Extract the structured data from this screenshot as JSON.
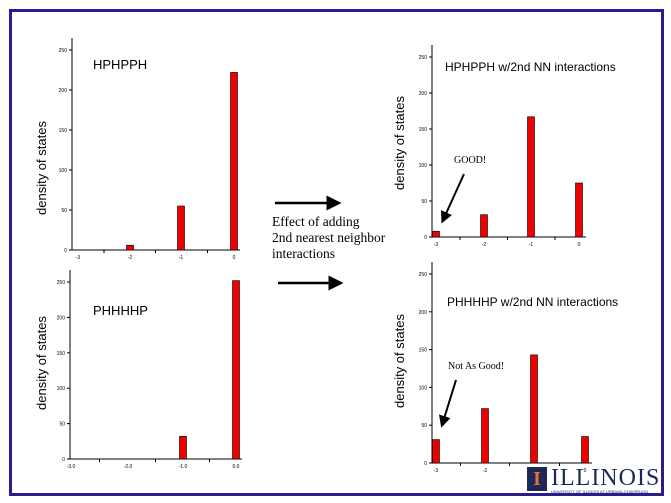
{
  "charts_meta": {
    "ylabel": "density of states"
  },
  "middle": {
    "line1": "Effect of adding",
    "line2": "2nd nearest neighbor",
    "line3": "interactions"
  },
  "notes": {
    "good": "GOOD!",
    "not_good": "Not As Good!"
  },
  "logo": {
    "text": "ILLINOIS",
    "letter": "I",
    "subtitle": "UNIVERSITY OF ILLINOIS AT URBANA-CHAMPAIGN"
  },
  "colors": {
    "bar": "#ee0000",
    "frame": "#2b1b8c"
  },
  "chart_data": [
    {
      "type": "bar",
      "title": "HPHPPH",
      "ylabel": "density of states",
      "categories": [
        "-3",
        "-2",
        "-1",
        "0"
      ],
      "values": [
        0,
        6,
        55,
        222
      ],
      "yticks": [
        "0",
        "50",
        "100",
        "150",
        "200",
        "250"
      ],
      "ylim": [
        0,
        250
      ]
    },
    {
      "type": "bar",
      "title": "PHHHHP",
      "ylabel": "density of states",
      "categories": [
        "-3.0",
        "-2.0",
        "-1.0",
        "0.0"
      ],
      "values": [
        0,
        0,
        32,
        252
      ],
      "yticks": [
        "0",
        "50",
        "100",
        "150",
        "200",
        "250"
      ],
      "ylim": [
        0,
        250
      ]
    },
    {
      "type": "bar",
      "title": "HPHPPH w/2nd NN interactions",
      "ylabel": "density of states",
      "categories": [
        "-3",
        "-2",
        "-1",
        "0"
      ],
      "values": [
        8,
        31,
        167,
        75
      ],
      "yticks": [
        "0",
        "50",
        "100",
        "150",
        "200",
        "250"
      ],
      "ylim": [
        0,
        250
      ]
    },
    {
      "type": "bar",
      "title": "PHHHHP w/2nd NN interactions",
      "ylabel": "density of states",
      "categories": [
        "-3",
        "-2",
        "-1",
        "0"
      ],
      "values": [
        31,
        72,
        143,
        35
      ],
      "yticks": [
        "0",
        "50",
        "100",
        "150",
        "200",
        "250"
      ],
      "ylim": [
        0,
        250
      ]
    }
  ]
}
